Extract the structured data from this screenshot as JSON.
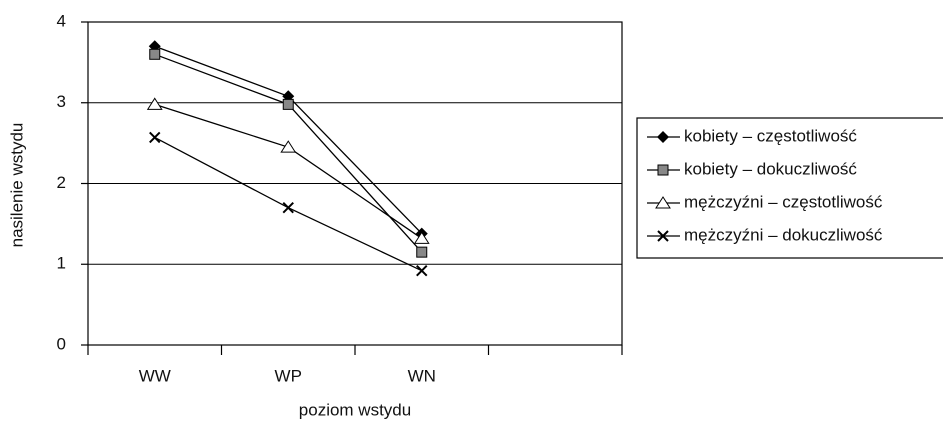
{
  "chart_data": {
    "type": "line",
    "x_label": "poziom wstydu",
    "y_label": "nasilenie wstydu",
    "categories": [
      "WW",
      "WP",
      "WN",
      null
    ],
    "series": [
      {
        "name": "kobiety – częstotliwość",
        "color": "#000000",
        "marker": "diamond",
        "values": [
          3.7,
          3.08,
          1.38,
          null
        ]
      },
      {
        "name": "kobiety – dokuczliwość",
        "color": "#000000",
        "marker": "square",
        "values": [
          3.6,
          2.98,
          1.15,
          null
        ]
      },
      {
        "name": "mężczyźni – częstotliwość",
        "color": "#000000",
        "marker": "triangle",
        "values": [
          2.98,
          2.45,
          1.32,
          null
        ]
      },
      {
        "name": "mężczyźni – dokuczliwość",
        "color": "#000000",
        "marker": "x",
        "values": [
          2.57,
          1.7,
          0.92,
          null
        ]
      }
    ],
    "ylim": [
      0,
      4
    ],
    "yticks": [
      0,
      1,
      2,
      3,
      4
    ],
    "grid": true,
    "legend": "right"
  }
}
